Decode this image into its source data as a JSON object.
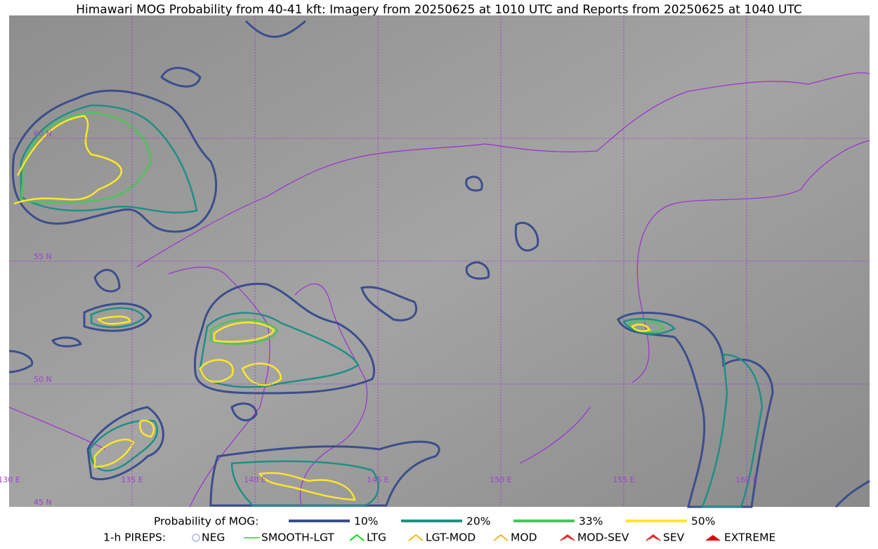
{
  "title": "Himawari MOG Probability from 40-41 kft: Imagery from 20250625 at 1010 UTC and Reports from 20250625 at 1040 UTC",
  "map": {
    "lat_labels": [
      "60 N",
      "55 N",
      "50 N",
      "45 N"
    ],
    "lon_labels": [
      "130 E",
      "135 E",
      "140 E",
      "145 E",
      "150 E",
      "155 E",
      "160 E"
    ]
  },
  "legend": {
    "mog_title": "Probability of MOG:",
    "mog_levels": [
      {
        "label": "10%",
        "color": "#3b4e8c"
      },
      {
        "label": "20%",
        "color": "#1f8f85"
      },
      {
        "label": "33%",
        "color": "#4cc45a"
      },
      {
        "label": "50%",
        "color": "#fde725"
      }
    ],
    "pirep_title": "1-h PIREPS:",
    "pireps": [
      {
        "label": "NEG",
        "color": "#b0b0f0"
      },
      {
        "label": "SMOOTH-LGT",
        "color": "#33cc33"
      },
      {
        "label": "LTG",
        "color": "#00dd00"
      },
      {
        "label": "LGT-MOD",
        "color": "#f0b020"
      },
      {
        "label": "MOD",
        "color": "#f0b020"
      },
      {
        "label": "MOD-SEV",
        "color": "#e03030"
      },
      {
        "label": "SEV",
        "color": "#e03030"
      },
      {
        "label": "EXTREME",
        "color": "#e00000"
      }
    ]
  }
}
